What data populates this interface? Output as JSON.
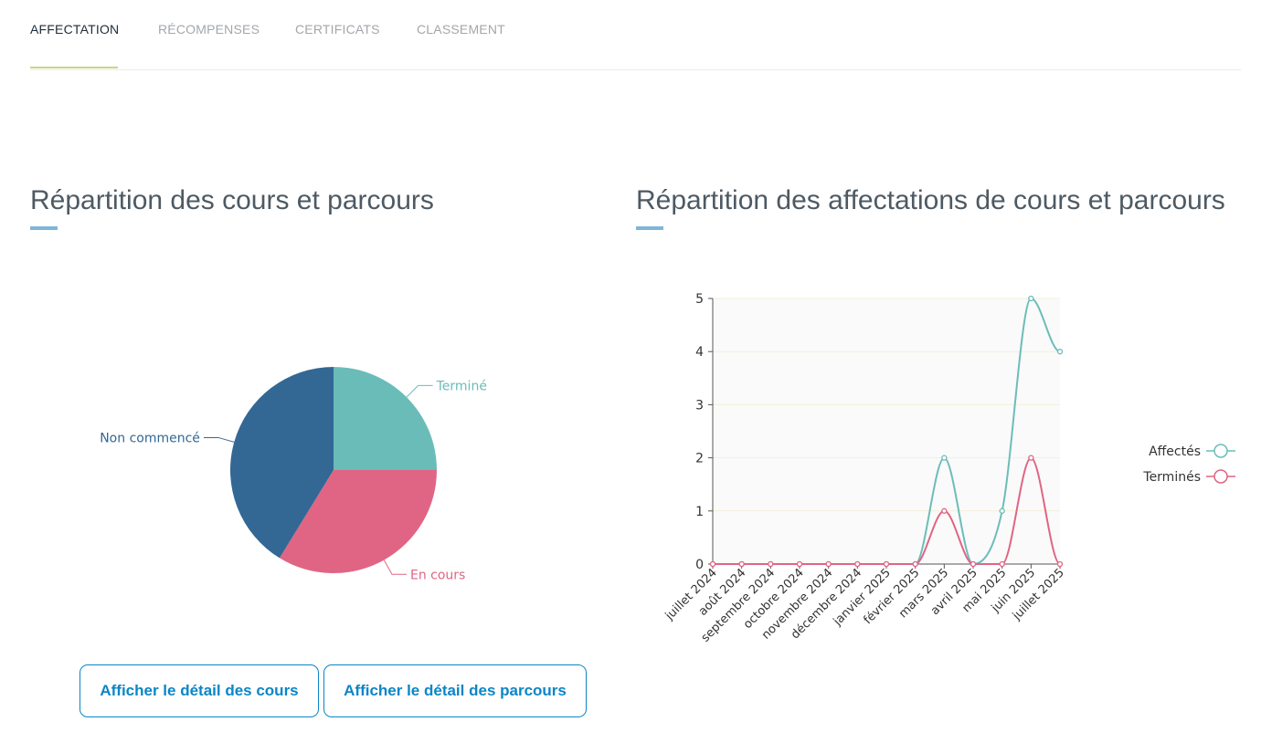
{
  "tabs": [
    {
      "label": "AFFECTATION",
      "active": true
    },
    {
      "label": "RÉCOMPENSES",
      "active": false
    },
    {
      "label": "CERTIFICATS",
      "active": false
    },
    {
      "label": "CLASSEMENT",
      "active": false
    }
  ],
  "left_section": {
    "title": "Répartition des cours et parcours"
  },
  "right_section": {
    "title": "Répartition des affectations de cours et parcours"
  },
  "buttons": {
    "courses_detail": "Afficher le détail des cours",
    "paths_detail": "Afficher le détail des parcours"
  },
  "colors": {
    "teal": "#6cbdb9",
    "pink": "#e06584",
    "navy": "#336895",
    "accent": "#0a86c7"
  },
  "chart_data": [
    {
      "type": "pie",
      "slices": [
        {
          "label": "Terminé",
          "value": 1,
          "color": "#6abcb9"
        },
        {
          "label": "En cours",
          "value": 1.35,
          "color": "#e06584"
        },
        {
          "label": "Non commencé",
          "value": 1.65,
          "color": "#336895"
        }
      ]
    },
    {
      "type": "line",
      "categories": [
        "juillet 2024",
        "août 2024",
        "septembre 2024",
        "octobre 2024",
        "novembre 2024",
        "décembre 2024",
        "janvier 2025",
        "février 2025",
        "mars 2025",
        "avril 2025",
        "mai 2025",
        "juin 2025",
        "juillet 2025"
      ],
      "series": [
        {
          "name": "Affectés",
          "values": [
            0,
            0,
            0,
            0,
            0,
            0,
            0,
            0,
            2,
            0,
            1,
            5,
            4
          ],
          "color": "#6cbdb9"
        },
        {
          "name": "Terminés",
          "values": [
            0,
            0,
            0,
            0,
            0,
            0,
            0,
            0,
            1,
            0,
            0,
            2,
            0
          ],
          "color": "#e06584"
        }
      ],
      "yticks": [
        0,
        1,
        2,
        3,
        4,
        5
      ],
      "ylim": [
        0,
        5
      ],
      "legend_position": "right",
      "smooth": true
    }
  ]
}
